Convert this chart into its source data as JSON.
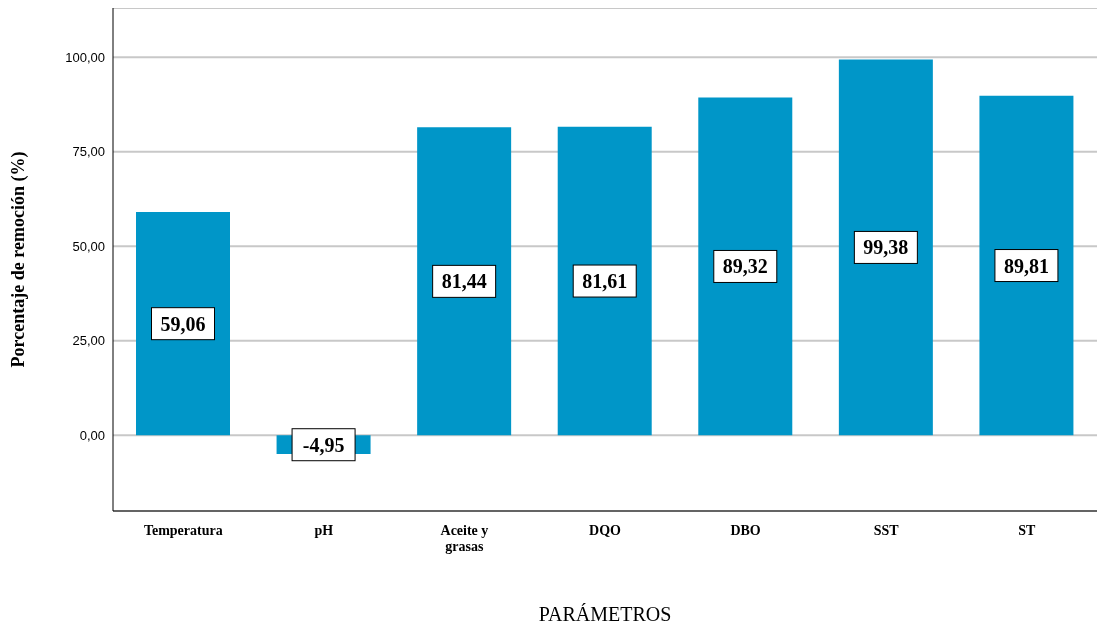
{
  "chart_data": {
    "type": "bar",
    "xlabel": "PARÁMETROS",
    "ylabel": "Porcentaje de remoción (%)",
    "categories": [
      "Temperatura",
      "pH",
      "Aceite y grasas",
      "DQO",
      "DBO",
      "SST",
      "ST"
    ],
    "values": [
      59.06,
      -4.95,
      81.44,
      81.61,
      89.32,
      99.38,
      89.81
    ],
    "value_labels": [
      "59,06",
      "-4,95",
      "81,44",
      "81,61",
      "89,32",
      "99,38",
      "89,81"
    ],
    "color": "#0096c8",
    "ylim": [
      -20,
      113
    ],
    "yticks": [
      {
        "value": 0,
        "label": "0,00"
      },
      {
        "value": 25,
        "label": "25,00"
      },
      {
        "value": 50,
        "label": "50,00"
      },
      {
        "value": 75,
        "label": "75,00"
      },
      {
        "value": 100,
        "label": "100,00"
      }
    ],
    "grid": "y"
  }
}
